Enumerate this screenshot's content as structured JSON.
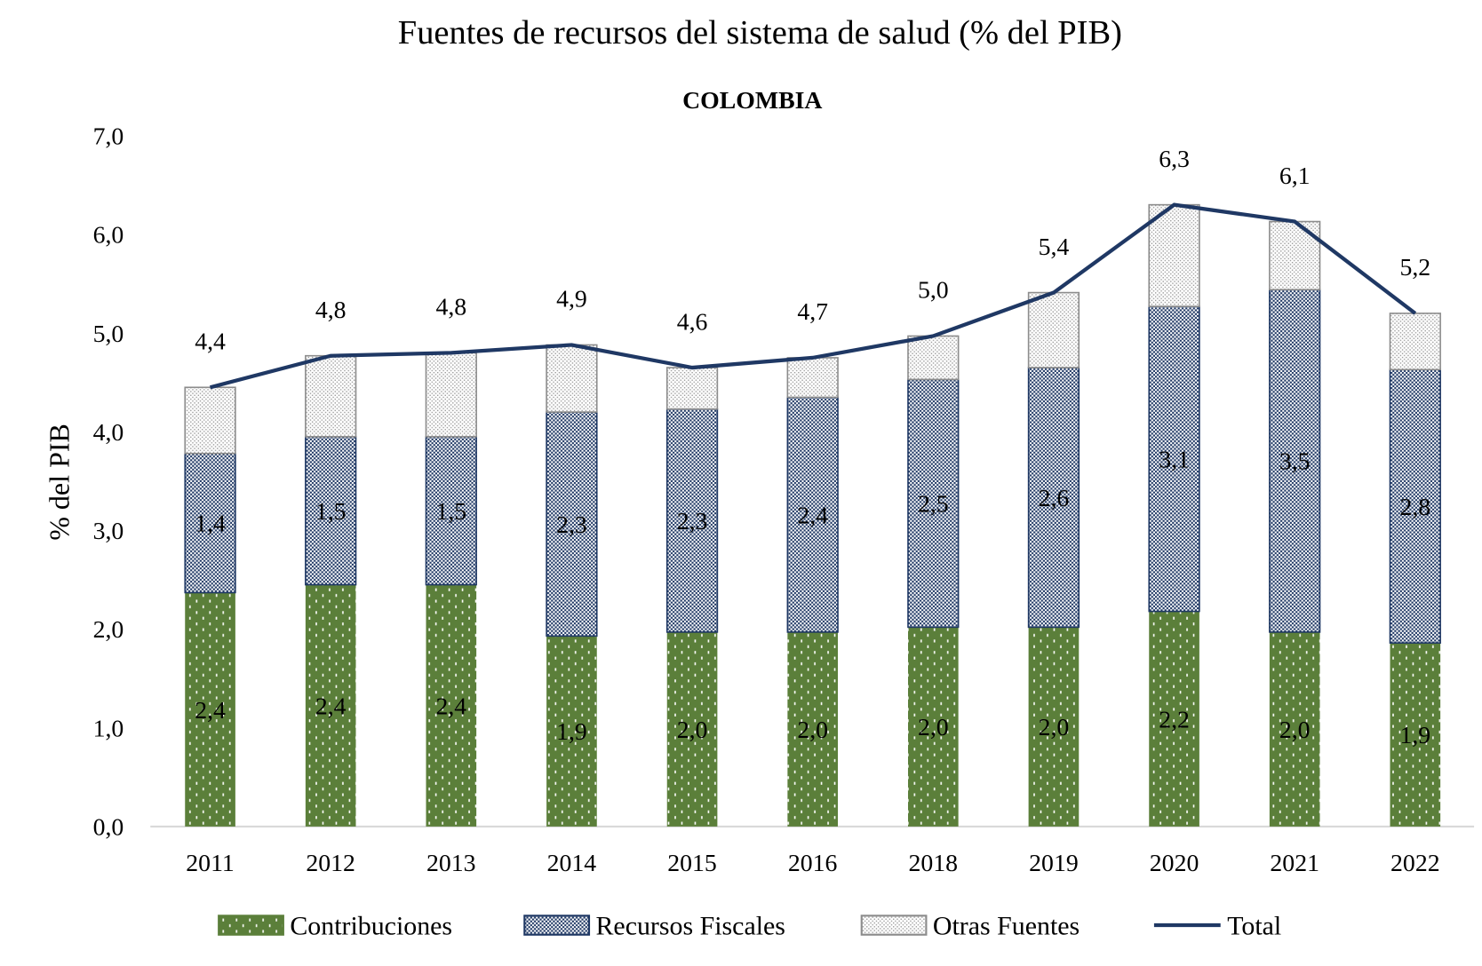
{
  "chart_data": {
    "type": "bar",
    "stacked": true,
    "title": "Fuentes de recursos del sistema de salud (% del PIB)",
    "subtitle": "COLOMBIA",
    "xlabel": "",
    "ylabel": "% del PIB",
    "ylim": [
      0,
      7
    ],
    "yticks": [
      "0,0",
      "1,0",
      "2,0",
      "3,0",
      "4,0",
      "5,0",
      "6,0",
      "7,0"
    ],
    "grid": false,
    "legend_position": "bottom",
    "categories": [
      "2011",
      "2012",
      "2013",
      "2014",
      "2015",
      "2016",
      "2018",
      "2019",
      "2020",
      "2021",
      "2022"
    ],
    "series": [
      {
        "name": "Contribuciones",
        "type": "bar",
        "color": "#5B7F3A",
        "values": [
          2.37,
          2.45,
          2.45,
          1.93,
          1.97,
          1.97,
          2.02,
          2.02,
          2.18,
          1.97,
          1.86
        ],
        "labels": [
          "2,4",
          "2,4",
          "2,4",
          "1,9",
          "2,0",
          "2,0",
          "2,0",
          "2,0",
          "2,2",
          "2,0",
          "1,9"
        ]
      },
      {
        "name": "Recursos Fiscales",
        "type": "bar",
        "color": "#1F3864",
        "values": [
          1.41,
          1.5,
          1.5,
          2.27,
          2.26,
          2.38,
          2.51,
          2.63,
          3.09,
          3.47,
          2.77
        ],
        "labels": [
          "1,4",
          "1,5",
          "1,5",
          "2,3",
          "2,3",
          "2,4",
          "2,5",
          "2,6",
          "3,1",
          "3,5",
          "2,8"
        ]
      },
      {
        "name": "Otras Fuentes",
        "type": "bar",
        "color": "#8C8C8C",
        "values": [
          0.67,
          0.82,
          0.85,
          0.68,
          0.42,
          0.4,
          0.44,
          0.76,
          1.03,
          0.69,
          0.57
        ]
      },
      {
        "name": "Total",
        "type": "line",
        "color": "#1F3864",
        "values": [
          4.45,
          4.77,
          4.8,
          4.88,
          4.65,
          4.75,
          4.97,
          5.41,
          6.3,
          6.13,
          5.2
        ],
        "labels": [
          "4,4",
          "4,8",
          "4,8",
          "4,9",
          "4,6",
          "4,7",
          "5,0",
          "5,4",
          "6,3",
          "6,1",
          "5,2"
        ]
      }
    ]
  }
}
